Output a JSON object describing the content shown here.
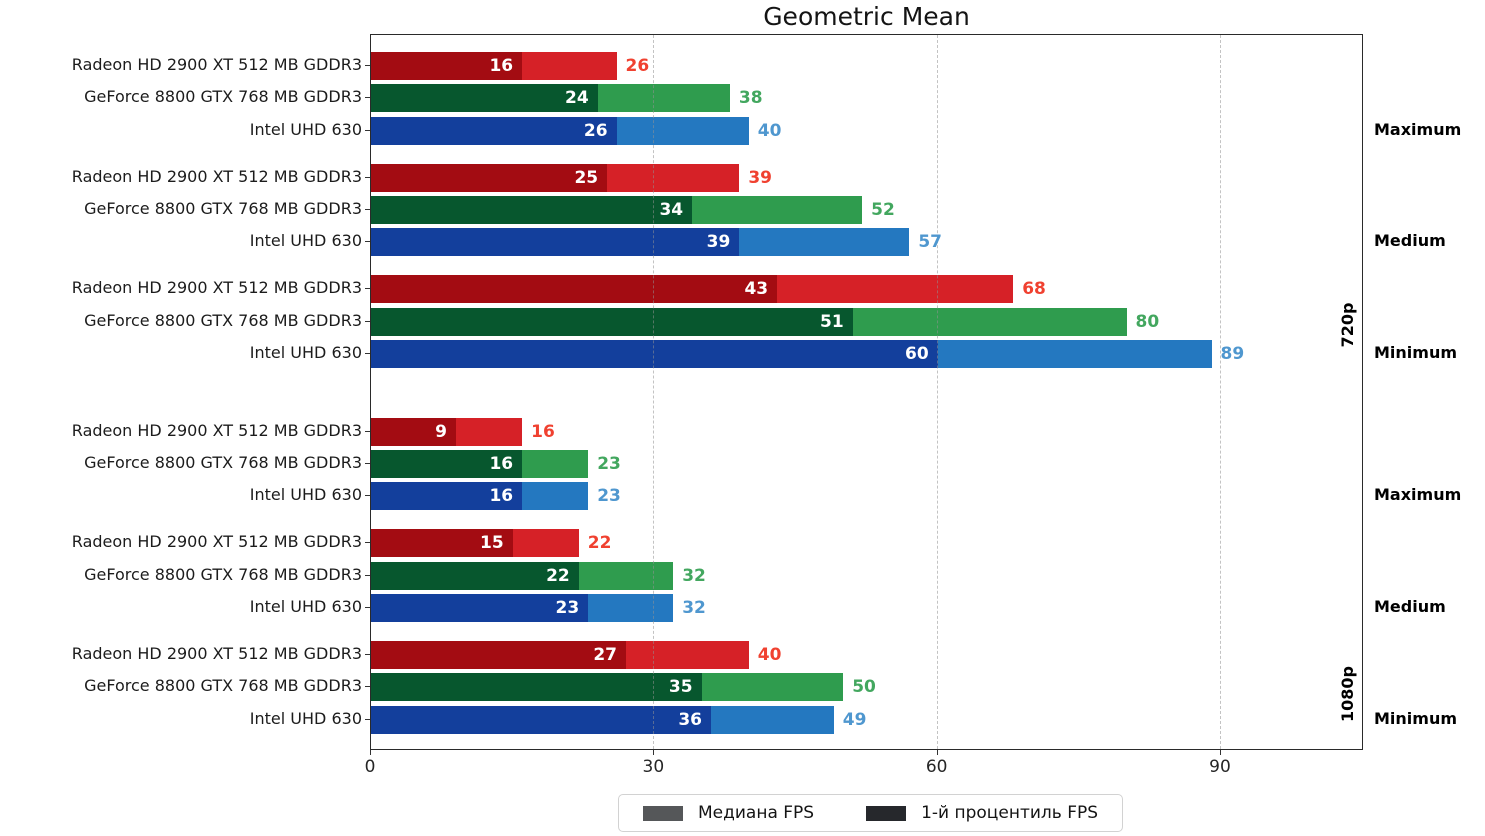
{
  "chart_data": {
    "type": "bar",
    "title": "Geometric Mean",
    "orientation": "horizontal",
    "axis": {
      "xlim": [
        0,
        105
      ],
      "ticks": [
        0,
        30,
        60,
        90
      ],
      "gridlines": [
        30,
        60,
        90
      ],
      "grid_style": "dashed"
    },
    "legend": [
      {
        "label": "Медиана FPS",
        "color": "#555759",
        "key": "median"
      },
      {
        "label": "1-й процентиль FPS",
        "color": "#26282C",
        "key": "percentile_1"
      }
    ],
    "palette": [
      {
        "series": "radeon",
        "dark": "#A30C12",
        "light": "#D62127",
        "value_label": "#F04130"
      },
      {
        "series": "geforce",
        "dark": "#07572E",
        "light": "#2F9C4E",
        "value_label": "#43A75F"
      },
      {
        "series": "intel",
        "dark": "#133F9C",
        "light": "#2478C0",
        "value_label": "#4F97CF"
      }
    ],
    "sections": [
      {
        "resolution": "720p",
        "groups": [
          {
            "preset": "Maximum",
            "bars": [
              {
                "gpu": "Radeon HD 2900 XT 512 MB GDDR3",
                "percentile_1": 16,
                "median": 26
              },
              {
                "gpu": "GeForce 8800 GTX 768 MB GDDR3",
                "percentile_1": 24,
                "median": 38
              },
              {
                "gpu": "Intel UHD 630",
                "percentile_1": 26,
                "median": 40
              }
            ]
          },
          {
            "preset": "Medium",
            "bars": [
              {
                "gpu": "Radeon HD 2900 XT 512 MB GDDR3",
                "percentile_1": 25,
                "median": 39
              },
              {
                "gpu": "GeForce 8800 GTX 768 MB GDDR3",
                "percentile_1": 34,
                "median": 52
              },
              {
                "gpu": "Intel UHD 630",
                "percentile_1": 39,
                "median": 57
              }
            ]
          },
          {
            "preset": "Minimum",
            "bars": [
              {
                "gpu": "Radeon HD 2900 XT 512 MB GDDR3",
                "percentile_1": 43,
                "median": 68
              },
              {
                "gpu": "GeForce 8800 GTX 768 MB GDDR3",
                "percentile_1": 51,
                "median": 80
              },
              {
                "gpu": "Intel UHD 630",
                "percentile_1": 60,
                "median": 89
              }
            ]
          }
        ]
      },
      {
        "resolution": "1080p",
        "groups": [
          {
            "preset": "Maximum",
            "bars": [
              {
                "gpu": "Radeon HD 2900 XT 512 MB GDDR3",
                "percentile_1": 9,
                "median": 16
              },
              {
                "gpu": "GeForce 8800 GTX 768 MB GDDR3",
                "percentile_1": 16,
                "median": 23
              },
              {
                "gpu": "Intel UHD 630",
                "percentile_1": 16,
                "median": 23
              }
            ]
          },
          {
            "preset": "Medium",
            "bars": [
              {
                "gpu": "Radeon HD 2900 XT 512 MB GDDR3",
                "percentile_1": 15,
                "median": 22
              },
              {
                "gpu": "GeForce 8800 GTX 768 MB GDDR3",
                "percentile_1": 22,
                "median": 32
              },
              {
                "gpu": "Intel UHD 630",
                "percentile_1": 23,
                "median": 32
              }
            ]
          },
          {
            "preset": "Minimum",
            "bars": [
              {
                "gpu": "Radeon HD 2900 XT 512 MB GDDR3",
                "percentile_1": 27,
                "median": 40
              },
              {
                "gpu": "GeForce 8800 GTX 768 MB GDDR3",
                "percentile_1": 35,
                "median": 50
              },
              {
                "gpu": "Intel UHD 630",
                "percentile_1": 36,
                "median": 49
              }
            ]
          }
        ]
      }
    ]
  }
}
